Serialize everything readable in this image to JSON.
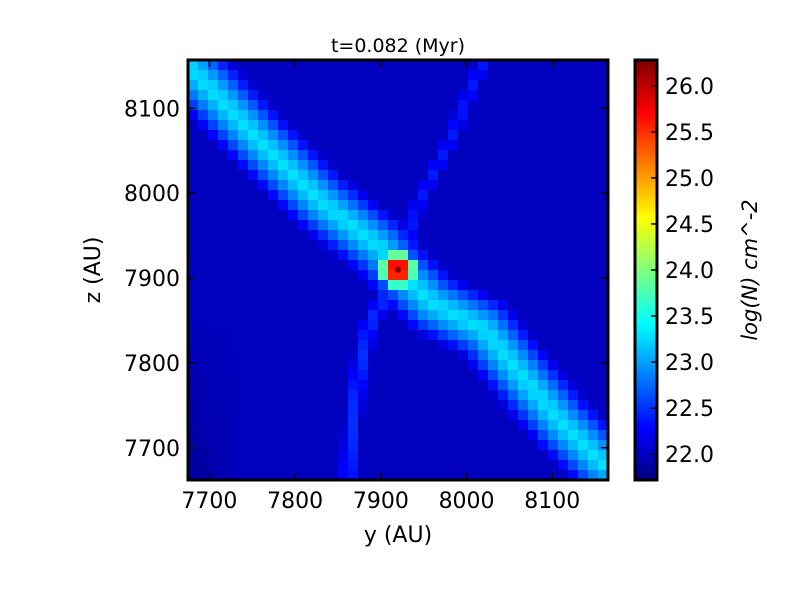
{
  "chart_data": {
    "type": "heatmap",
    "title": "t=0.082 (Myr)",
    "xlabel": "y (AU)",
    "ylabel": "z (AU)",
    "xlim": [
      7675,
      8165
    ],
    "ylim": [
      7662,
      8157
    ],
    "xticks": [
      7700,
      7800,
      7900,
      8000,
      8100
    ],
    "yticks": [
      7700,
      7800,
      7900,
      8000,
      8100
    ],
    "colormap": "jet",
    "colorbar": {
      "label": "log(N) cm^-2",
      "range": [
        21.72,
        26.28
      ],
      "ticks": [
        "22.0",
        "22.5",
        "23.0",
        "23.5",
        "24.0",
        "24.5",
        "25.0",
        "25.5",
        "26.0"
      ]
    },
    "features": {
      "background_logN": 22.0,
      "peak": {
        "y": 7920,
        "z": 7910,
        "logN": 26.3
      },
      "filament": {
        "points": [
          [
            7675,
            8150
          ],
          [
            7760,
            8060
          ],
          [
            7830,
            7990
          ],
          [
            7900,
            7935
          ],
          [
            7920,
            7910
          ],
          [
            7960,
            7870
          ],
          [
            8020,
            7840
          ],
          [
            8060,
            7790
          ],
          [
            8110,
            7730
          ],
          [
            8160,
            7680
          ]
        ],
        "logN": 23.3
      },
      "streamers": [
        {
          "points": [
            [
              7920,
              7910
            ],
            [
              7885,
              7840
            ],
            [
              7870,
              7760
            ],
            [
              7862,
              7662
            ]
          ],
          "logN": 22.5
        },
        {
          "points": [
            [
              7920,
              7910
            ],
            [
              7945,
              7990
            ],
            [
              7980,
              8060
            ],
            [
              8020,
              8157
            ]
          ],
          "logN": 22.4
        }
      ]
    }
  }
}
